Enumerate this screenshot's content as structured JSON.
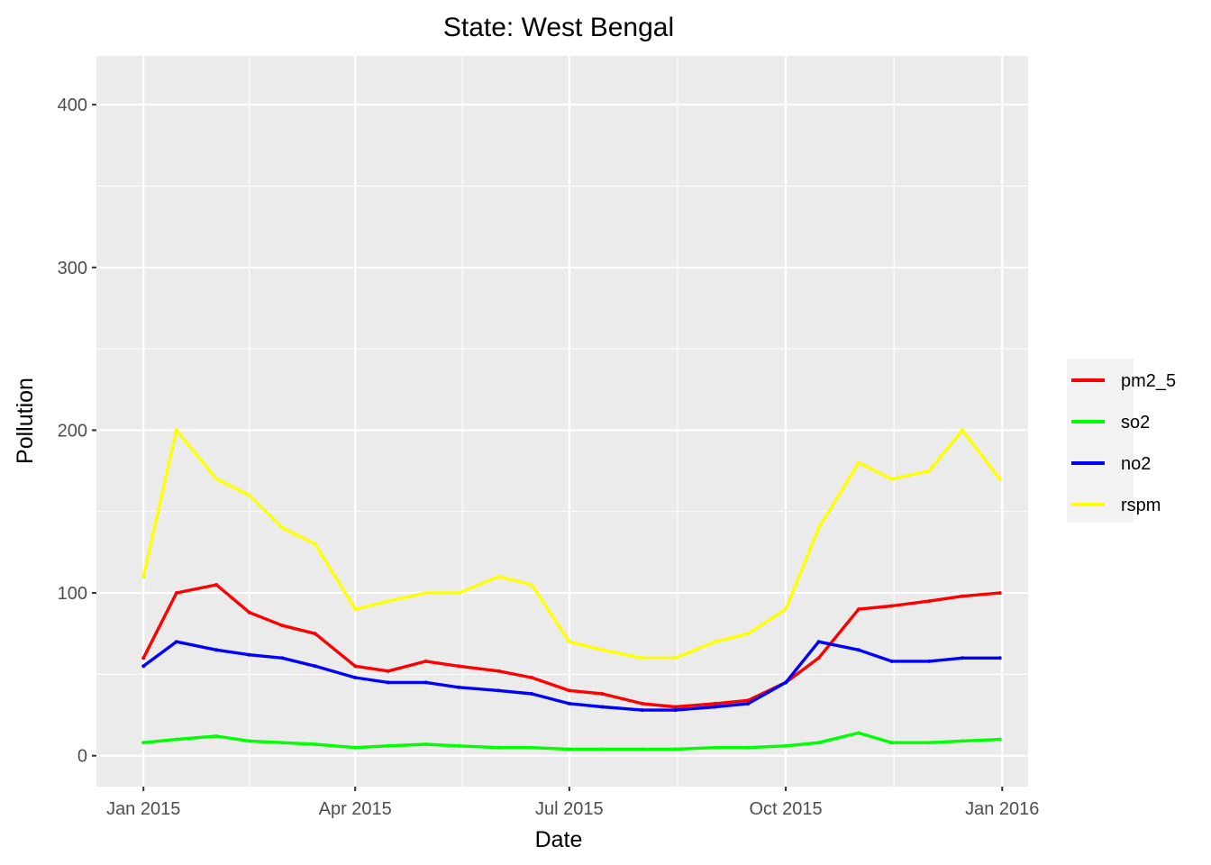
{
  "chart_data": {
    "type": "line",
    "title": "State: West Bengal",
    "xlabel": "Date",
    "ylabel": "Pollution",
    "xlim": [
      "2014-12-12",
      "2016-01-12"
    ],
    "ylim": [
      -19,
      430
    ],
    "x_ticks": [
      {
        "date": "2015-01-01",
        "label": "Jan 2015"
      },
      {
        "date": "2015-04-01",
        "label": "Apr 2015"
      },
      {
        "date": "2015-07-01",
        "label": "Jul 2015"
      },
      {
        "date": "2015-10-01",
        "label": "Oct 2015"
      },
      {
        "date": "2016-01-01",
        "label": "Jan 2016"
      }
    ],
    "y_ticks": [
      0,
      100,
      200,
      300,
      400
    ],
    "grid": true,
    "legend_position": "right",
    "series": [
      {
        "name": "pm2_5",
        "color": "#ff0000",
        "x": [
          "2015-01-01",
          "2015-01-15",
          "2015-02-01",
          "2015-02-15",
          "2015-03-01",
          "2015-03-15",
          "2015-04-01",
          "2015-04-15",
          "2015-05-01",
          "2015-05-15",
          "2015-06-01",
          "2015-06-15",
          "2015-07-01",
          "2015-07-15",
          "2015-08-01",
          "2015-08-15",
          "2015-09-01",
          "2015-09-15",
          "2015-10-01",
          "2015-10-15",
          "2015-11-01",
          "2015-11-15",
          "2015-12-01",
          "2015-12-15",
          "2015-12-31"
        ],
        "values": [
          60,
          100,
          105,
          88,
          80,
          75,
          55,
          52,
          58,
          55,
          52,
          48,
          40,
          38,
          32,
          30,
          32,
          34,
          45,
          60,
          90,
          92,
          95,
          98,
          100
        ]
      },
      {
        "name": "so2",
        "color": "#00ff00",
        "x": [
          "2015-01-01",
          "2015-01-15",
          "2015-02-01",
          "2015-02-15",
          "2015-03-01",
          "2015-03-15",
          "2015-04-01",
          "2015-04-15",
          "2015-05-01",
          "2015-05-15",
          "2015-06-01",
          "2015-06-15",
          "2015-07-01",
          "2015-07-15",
          "2015-08-01",
          "2015-08-15",
          "2015-09-01",
          "2015-09-15",
          "2015-10-01",
          "2015-10-15",
          "2015-11-01",
          "2015-11-15",
          "2015-12-01",
          "2015-12-15",
          "2015-12-31"
        ],
        "values": [
          8,
          10,
          12,
          9,
          8,
          7,
          5,
          6,
          7,
          6,
          5,
          5,
          4,
          4,
          4,
          4,
          5,
          5,
          6,
          8,
          14,
          8,
          8,
          9,
          10
        ]
      },
      {
        "name": "no2",
        "color": "#0000ff",
        "x": [
          "2015-01-01",
          "2015-01-15",
          "2015-02-01",
          "2015-02-15",
          "2015-03-01",
          "2015-03-15",
          "2015-04-01",
          "2015-04-15",
          "2015-05-01",
          "2015-05-15",
          "2015-06-01",
          "2015-06-15",
          "2015-07-01",
          "2015-07-15",
          "2015-08-01",
          "2015-08-15",
          "2015-09-01",
          "2015-09-15",
          "2015-10-01",
          "2015-10-15",
          "2015-11-01",
          "2015-11-15",
          "2015-12-01",
          "2015-12-15",
          "2015-12-31"
        ],
        "values": [
          55,
          70,
          65,
          62,
          60,
          55,
          48,
          45,
          45,
          42,
          40,
          38,
          32,
          30,
          28,
          28,
          30,
          32,
          45,
          70,
          65,
          58,
          58,
          60,
          60
        ]
      },
      {
        "name": "rspm",
        "color": "#ffff00",
        "x": [
          "2015-01-01",
          "2015-01-15",
          "2015-02-01",
          "2015-02-15",
          "2015-03-01",
          "2015-03-15",
          "2015-04-01",
          "2015-04-15",
          "2015-05-01",
          "2015-05-15",
          "2015-06-01",
          "2015-06-15",
          "2015-07-01",
          "2015-07-15",
          "2015-08-01",
          "2015-08-15",
          "2015-09-01",
          "2015-09-15",
          "2015-10-01",
          "2015-10-15",
          "2015-11-01",
          "2015-11-15",
          "2015-12-01",
          "2015-12-15",
          "2015-12-31"
        ],
        "values": [
          110,
          200,
          170,
          160,
          140,
          130,
          90,
          95,
          100,
          100,
          110,
          105,
          70,
          65,
          60,
          60,
          70,
          75,
          90,
          140,
          180,
          170,
          175,
          200,
          170
        ]
      }
    ]
  }
}
